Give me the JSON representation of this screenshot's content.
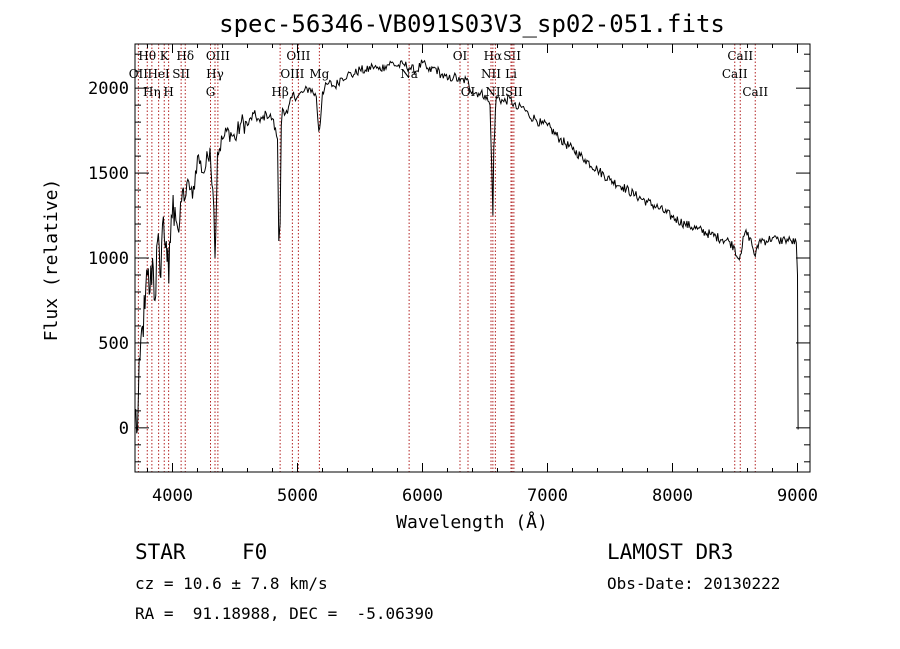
{
  "chart_data": {
    "type": "line",
    "title": "spec-56346-VB091S03V3_sp02-051.fits",
    "xlabel": "Wavelength (Å)",
    "ylabel": "Flux (relative)",
    "xlim": [
      3700,
      9100
    ],
    "ylim": [
      -260,
      2260
    ],
    "xticks": [
      4000,
      5000,
      6000,
      7000,
      8000,
      9000
    ],
    "yticks": [
      0,
      500,
      1000,
      1500,
      2000
    ],
    "series": [
      {
        "name": "flux",
        "x": [
          3700,
          3720,
          3740,
          3760,
          3780,
          3800,
          3820,
          3840,
          3860,
          3880,
          3900,
          3920,
          3950,
          3970,
          3990,
          4020,
          4050,
          4080,
          4100,
          4130,
          4160,
          4200,
          4250,
          4300,
          4330,
          4340,
          4360,
          4400,
          4450,
          4500,
          4550,
          4600,
          4650,
          4700,
          4750,
          4800,
          4840,
          4850,
          4861,
          4870,
          4880,
          4920,
          4960,
          5000,
          5050,
          5100,
          5150,
          5170,
          5183,
          5200,
          5250,
          5300,
          5350,
          5400,
          5450,
          5500,
          5550,
          5600,
          5650,
          5700,
          5750,
          5800,
          5850,
          5900,
          5950,
          6000,
          6050,
          6100,
          6150,
          6200,
          6250,
          6300,
          6350,
          6400,
          6450,
          6500,
          6540,
          6555,
          6563,
          6570,
          6590,
          6650,
          6700,
          6750,
          6800,
          6850,
          6900,
          6950,
          7000,
          7100,
          7200,
          7300,
          7400,
          7500,
          7600,
          7700,
          7800,
          7900,
          8000,
          8100,
          8200,
          8300,
          8400,
          8450,
          8498,
          8520,
          8542,
          8580,
          8620,
          8662,
          8700,
          8750,
          8800,
          8850,
          8900,
          8950,
          8990,
          9000,
          9005
        ],
        "y": [
          100,
          -10,
          400,
          600,
          700,
          900,
          800,
          1000,
          750,
          1100,
          900,
          1200,
          1100,
          850,
          1250,
          1300,
          1150,
          1400,
          1350,
          1450,
          1350,
          1600,
          1500,
          1650,
          1300,
          1000,
          1620,
          1700,
          1750,
          1700,
          1800,
          1780,
          1850,
          1800,
          1850,
          1820,
          1700,
          1100,
          1200,
          1780,
          1880,
          1850,
          1960,
          1950,
          1980,
          2000,
          1950,
          1750,
          1800,
          1980,
          2030,
          2010,
          2060,
          2080,
          2080,
          2110,
          2100,
          2130,
          2110,
          2130,
          2150,
          2130,
          2140,
          2120,
          2100,
          2150,
          2100,
          2120,
          2080,
          2050,
          2070,
          2040,
          2050,
          1980,
          1970,
          1960,
          1900,
          1500,
          1250,
          1650,
          1950,
          1920,
          1940,
          1880,
          1890,
          1840,
          1820,
          1790,
          1780,
          1700,
          1640,
          1580,
          1520,
          1460,
          1420,
          1370,
          1330,
          1290,
          1240,
          1200,
          1170,
          1140,
          1110,
          1100,
          1060,
          1000,
          1020,
          1150,
          1120,
          1010,
          1110,
          1100,
          1120,
          1100,
          1110,
          1100,
          1090,
          900,
          -10
        ]
      }
    ],
    "line_markers": [
      {
        "label": "Hθ",
        "x": 3798,
        "row": 1
      },
      {
        "label": "K",
        "x": 3934,
        "row": 1
      },
      {
        "label": "Hδ",
        "x": 4102,
        "row": 1
      },
      {
        "label": "OII",
        "x": 3727,
        "row": 2
      },
      {
        "label": "HeI",
        "x": 3889,
        "row": 2
      },
      {
        "label": "SII",
        "x": 4069,
        "row": 2
      },
      {
        "label": "Hη",
        "x": 3835,
        "row": 3
      },
      {
        "label": "H",
        "x": 3969,
        "row": 3
      },
      {
        "label": "OIII",
        "x": 4363,
        "row": 1
      },
      {
        "label": "Hγ",
        "x": 4340,
        "row": 2
      },
      {
        "label": "G",
        "x": 4304,
        "row": 3
      },
      {
        "label": "OIII",
        "x": 5007,
        "row": 1
      },
      {
        "label": "OIII",
        "x": 4959,
        "row": 2
      },
      {
        "label": "Hβ",
        "x": 4861,
        "row": 3
      },
      {
        "label": "Mg",
        "x": 5175,
        "row": 0
      },
      {
        "label": "Na",
        "x": 5893,
        "row": 0
      },
      {
        "label": "OI",
        "x": 6300,
        "row": 1
      },
      {
        "label": "OI",
        "x": 6364,
        "row": 3
      },
      {
        "label": "Hα",
        "x": 6563,
        "row": 1
      },
      {
        "label": "SII",
        "x": 6717,
        "row": 1
      },
      {
        "label": "NII",
        "x": 6548,
        "row": 2
      },
      {
        "label": "Li",
        "x": 6708,
        "row": 2
      },
      {
        "label": "NII",
        "x": 6583,
        "row": 3
      },
      {
        "label": "SII",
        "x": 6731,
        "row": 3
      },
      {
        "label": "CaII",
        "x": 8542,
        "row": 1
      },
      {
        "label": "CaII",
        "x": 8498,
        "row": 2
      },
      {
        "label": "CaII",
        "x": 8662,
        "row": 3
      }
    ],
    "grid": false,
    "legend": "none"
  },
  "info": {
    "object_class": "STAR",
    "subclass": "F0",
    "survey": "LAMOST DR3",
    "redshift_line": "cz = 10.6 ± 7.8 km/s",
    "obs_date_line": "Obs-Date: 20130222",
    "coords_line": "RA =  91.18988, DEC =  -5.06390"
  },
  "colors": {
    "axis": "#000000",
    "spectrum": "#000000",
    "marker_line": "#b22222",
    "background": "#ffffff"
  }
}
